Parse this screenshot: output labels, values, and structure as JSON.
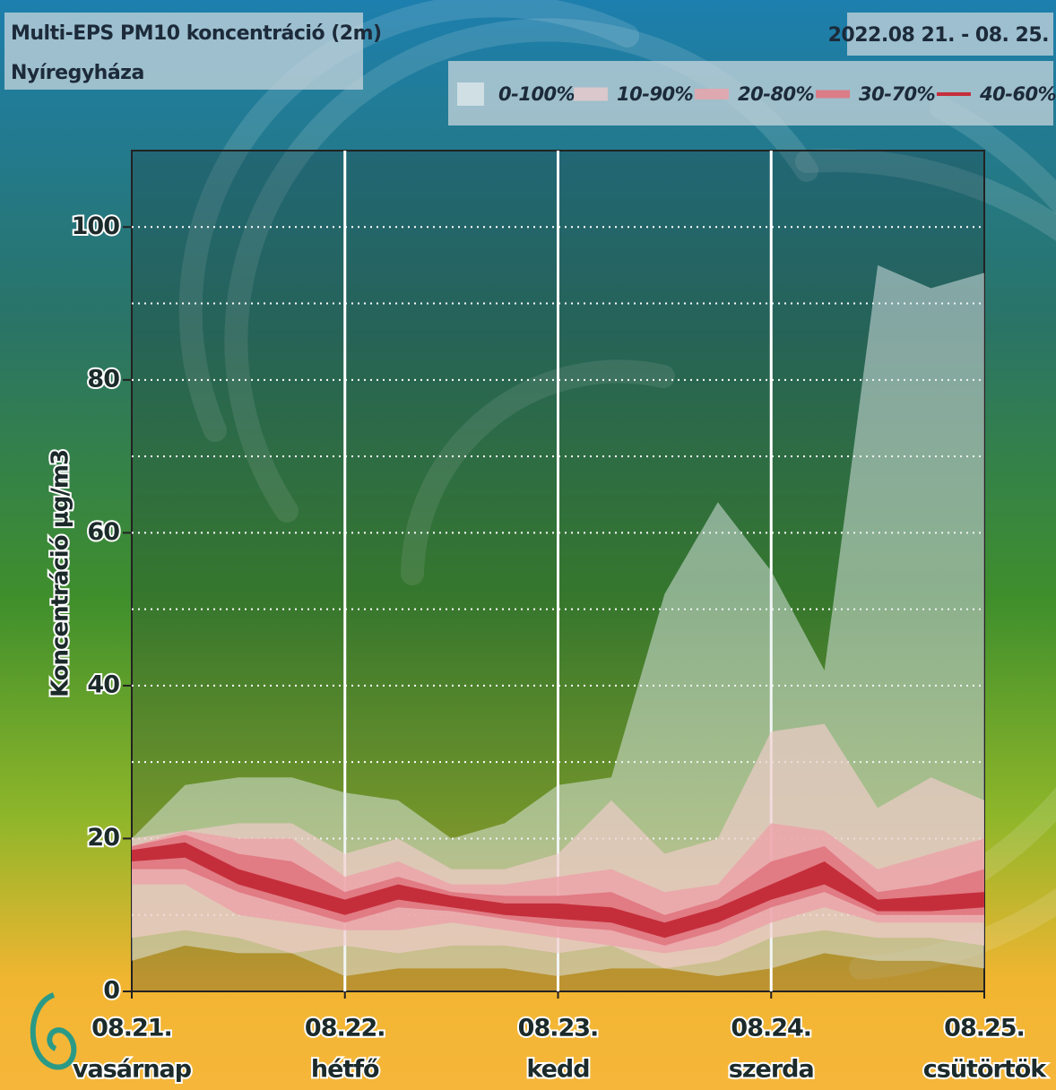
{
  "chart_data": {
    "type": "fan",
    "title": "Multi-EPS PM10 koncentráció (2m)",
    "subtitle": "Nyíregyháza",
    "date_range": "2022.08 21. - 08. 25.",
    "y_label": "Koncentráció µg/m3",
    "x": [
      0,
      0.25,
      0.5,
      0.75,
      1,
      1.25,
      1.5,
      1.75,
      2,
      2.25,
      2.5,
      2.75,
      3,
      3.25,
      3.5,
      3.75,
      4
    ],
    "xlim": [
      0,
      4
    ],
    "xticks": [
      {
        "value": 0,
        "label": "08.21.",
        "day": "vasárnap"
      },
      {
        "value": 1,
        "label": "08.22.",
        "day": "hétfő"
      },
      {
        "value": 2,
        "label": "08.23.",
        "day": "kedd"
      },
      {
        "value": 3,
        "label": "08.24.",
        "day": "szerda"
      },
      {
        "value": 4,
        "label": "08.25.",
        "day": "csütörtök"
      }
    ],
    "ylim": [
      0,
      110
    ],
    "yticks": [
      0,
      20,
      40,
      60,
      80,
      100
    ],
    "minor_yticks": [
      10,
      30,
      50,
      70,
      90
    ],
    "grid": true,
    "series": [
      {
        "name": "0-100%",
        "color": "#e4ecee",
        "opacity": 0.5,
        "lower": [
          4,
          6,
          5,
          5,
          2,
          3,
          3,
          3,
          2,
          3,
          3,
          2,
          3,
          5,
          4,
          4,
          3
        ],
        "upper": [
          20,
          27,
          28,
          28,
          26,
          25,
          20,
          22,
          27,
          28,
          52,
          64,
          55,
          42,
          95,
          92,
          94
        ]
      },
      {
        "name": "10-90%",
        "color": "#f3cccc",
        "opacity": 0.65,
        "lower": [
          7,
          8,
          7,
          5,
          6,
          5,
          6,
          6,
          5,
          6,
          3,
          4,
          7,
          8,
          7,
          7,
          6
        ],
        "upper": [
          20,
          21,
          22,
          22,
          18,
          20,
          16,
          16,
          18,
          25,
          18,
          20,
          34,
          35,
          24,
          28,
          25
        ]
      },
      {
        "name": "20-80%",
        "color": "#eca3a9",
        "opacity": 0.8,
        "lower": [
          14,
          14,
          10,
          9,
          8,
          8,
          9,
          8,
          7,
          6,
          5,
          6,
          9,
          11,
          9,
          9,
          9
        ],
        "upper": [
          19,
          21,
          20,
          20,
          15,
          17,
          14,
          14,
          15,
          16,
          13,
          14,
          22,
          21,
          16,
          18,
          20
        ]
      },
      {
        "name": "30-70%",
        "color": "#e07680",
        "opacity": 0.9,
        "lower": [
          16,
          16,
          13,
          11,
          9,
          11,
          10.5,
          9.5,
          8.5,
          8,
          6,
          8,
          11,
          13,
          10,
          10,
          10
        ],
        "upper": [
          19,
          20.5,
          18,
          17,
          13,
          15,
          13,
          12.5,
          12.5,
          13,
          10,
          12,
          17,
          19,
          13,
          14,
          16
        ]
      },
      {
        "name": "40-60%",
        "color": "#c42e3a",
        "opacity": 1,
        "lower": [
          17,
          17.5,
          14,
          12,
          10,
          12,
          11,
          10,
          9.5,
          9,
          7,
          9,
          12,
          14,
          10.5,
          10.5,
          11
        ],
        "upper": [
          18.5,
          19.5,
          16,
          14,
          12,
          14,
          12.5,
          11.5,
          11.5,
          11,
          9,
          11,
          14,
          17,
          12,
          12.5,
          13
        ]
      }
    ]
  }
}
